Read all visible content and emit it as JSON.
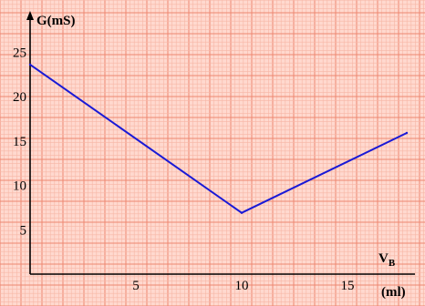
{
  "chart_data": {
    "type": "line",
    "title": "",
    "ylabel": "G(mS)",
    "xlabel_main": "V",
    "xlabel_sub": "B",
    "xlabel_unit": "(ml)",
    "xlim": [
      0,
      18
    ],
    "ylim": [
      0,
      27
    ],
    "x_ticks": [
      5,
      10,
      15
    ],
    "y_ticks": [
      5,
      10,
      15,
      20,
      25
    ],
    "grid": true,
    "series": [
      {
        "x": [
          0,
          10,
          17.8
        ],
        "y": [
          23.6,
          6.9,
          15.9
        ]
      }
    ]
  },
  "colors": {
    "background": "#ffd9cf",
    "grid_minor": "#f7b6a6",
    "grid_major": "#ee8870",
    "axis": "#000000",
    "line": "#1a1ad6"
  }
}
